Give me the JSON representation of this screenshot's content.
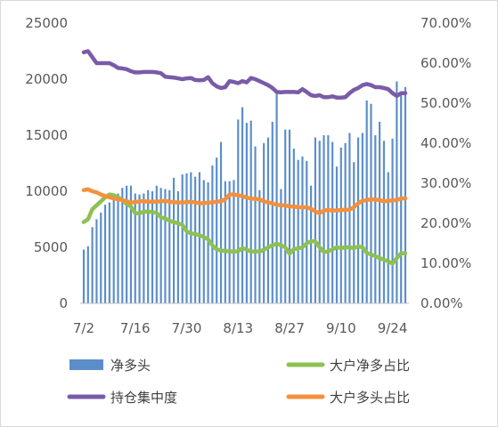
{
  "chart_data": {
    "type": "bar+line",
    "title": "",
    "categories": [
      "7/2",
      "7/3",
      "7/4",
      "7/5",
      "7/6",
      "7/7",
      "7/9",
      "7/10",
      "7/11",
      "7/12",
      "7/13",
      "7/14",
      "7/16",
      "7/17",
      "7/18",
      "7/19",
      "7/20",
      "7/21",
      "7/23",
      "7/24",
      "7/25",
      "7/26",
      "7/27",
      "7/28",
      "7/30",
      "7/31",
      "8/1",
      "8/2",
      "8/3",
      "8/4",
      "8/6",
      "8/7",
      "8/8",
      "8/9",
      "8/10",
      "8/11",
      "8/13",
      "8/14",
      "8/15",
      "8/16",
      "8/17",
      "8/18",
      "8/20",
      "8/21",
      "8/22",
      "8/23",
      "8/24",
      "8/25",
      "8/27",
      "8/28",
      "8/29",
      "8/30",
      "8/31",
      "9/1",
      "9/3",
      "9/4",
      "9/5",
      "9/6",
      "9/7",
      "9/8",
      "9/10",
      "9/11",
      "9/12",
      "9/13",
      "9/14",
      "9/15",
      "9/17",
      "9/18",
      "9/19",
      "9/20",
      "9/21",
      "9/22",
      "9/24",
      "9/25",
      "9/26",
      "9/27"
    ],
    "x_tick_labels": [
      "7/2",
      "7/16",
      "7/30",
      "8/13",
      "8/27",
      "9/10",
      "9/24"
    ],
    "y_left": {
      "min": 0,
      "max": 25000,
      "step": 5000,
      "tick_labels": [
        "0",
        "5000",
        "10000",
        "15000",
        "20000",
        "25000"
      ]
    },
    "y_right": {
      "min": 0,
      "max": 0.7,
      "step": 0.1,
      "tick_labels": [
        "0.00%",
        "10.00%",
        "20.00%",
        "30.00%",
        "40.00%",
        "50.00%",
        "60.00%",
        "70.00%"
      ]
    },
    "legend_position": "bottom",
    "series": [
      {
        "name": "净多头",
        "type": "bar",
        "axis": "left",
        "color": "#5b8ec9",
        "values": [
          4800,
          5100,
          6800,
          7500,
          8100,
          8800,
          9000,
          9600,
          9800,
          10300,
          10500,
          10500,
          9800,
          9700,
          9800,
          10100,
          10000,
          10500,
          10300,
          10200,
          10100,
          11200,
          10000,
          11500,
          11600,
          11700,
          11300,
          11700,
          11000,
          10800,
          12300,
          13000,
          14400,
          10900,
          10900,
          11000,
          16400,
          17500,
          16100,
          16300,
          14000,
          10100,
          14300,
          14800,
          16200,
          19000,
          10200,
          15500,
          15500,
          13800,
          12800,
          13100,
          12700,
          10500,
          14800,
          14500,
          15000,
          15000,
          14400,
          12200,
          13900,
          14300,
          15200,
          12600,
          14800,
          15200,
          18100,
          17800,
          15000,
          16200,
          14500,
          11700,
          14700,
          19800,
          18800,
          19300
        ]
      },
      {
        "name": "大户净多占比",
        "type": "line",
        "axis": "right",
        "color": "#8dc152",
        "values": [
          0.203,
          0.21,
          0.235,
          0.245,
          0.255,
          0.265,
          0.272,
          0.27,
          0.265,
          0.258,
          0.248,
          0.242,
          0.225,
          0.225,
          0.229,
          0.229,
          0.228,
          0.226,
          0.215,
          0.212,
          0.206,
          0.203,
          0.2,
          0.196,
          0.18,
          0.175,
          0.173,
          0.17,
          0.166,
          0.16,
          0.145,
          0.135,
          0.132,
          0.131,
          0.13,
          0.129,
          0.13,
          0.138,
          0.134,
          0.129,
          0.13,
          0.129,
          0.134,
          0.14,
          0.145,
          0.149,
          0.145,
          0.14,
          0.124,
          0.136,
          0.137,
          0.14,
          0.15,
          0.155,
          0.155,
          0.14,
          0.128,
          0.13,
          0.135,
          0.14,
          0.138,
          0.14,
          0.14,
          0.138,
          0.142,
          0.14,
          0.126,
          0.122,
          0.118,
          0.113,
          0.109,
          0.105,
          0.099,
          0.113,
          0.125,
          0.125
        ]
      },
      {
        "name": "持仓集中度",
        "type": "line",
        "axis": "right",
        "color": "#7a5ba8",
        "values": [
          0.627,
          0.63,
          0.615,
          0.6,
          0.6,
          0.6,
          0.6,
          0.595,
          0.588,
          0.587,
          0.585,
          0.58,
          0.577,
          0.577,
          0.578,
          0.578,
          0.578,
          0.577,
          0.575,
          0.566,
          0.565,
          0.564,
          0.562,
          0.56,
          0.562,
          0.563,
          0.558,
          0.557,
          0.558,
          0.565,
          0.55,
          0.542,
          0.538,
          0.54,
          0.555,
          0.553,
          0.55,
          0.555,
          0.552,
          0.563,
          0.56,
          0.555,
          0.55,
          0.545,
          0.538,
          0.528,
          0.527,
          0.528,
          0.528,
          0.528,
          0.527,
          0.535,
          0.528,
          0.52,
          0.518,
          0.52,
          0.515,
          0.515,
          0.517,
          0.514,
          0.514,
          0.515,
          0.525,
          0.533,
          0.538,
          0.545,
          0.548,
          0.545,
          0.54,
          0.54,
          0.538,
          0.535,
          0.525,
          0.518,
          0.525,
          0.525
        ]
      },
      {
        "name": "大户多头占比",
        "type": "line",
        "axis": "right",
        "color": "#f4903c",
        "values": [
          0.283,
          0.285,
          0.28,
          0.277,
          0.272,
          0.268,
          0.265,
          0.262,
          0.26,
          0.258,
          0.255,
          0.252,
          0.253,
          0.255,
          0.255,
          0.254,
          0.254,
          0.254,
          0.255,
          0.256,
          0.254,
          0.253,
          0.252,
          0.252,
          0.253,
          0.254,
          0.252,
          0.25,
          0.25,
          0.252,
          0.252,
          0.254,
          0.255,
          0.26,
          0.272,
          0.272,
          0.27,
          0.268,
          0.264,
          0.262,
          0.261,
          0.26,
          0.255,
          0.252,
          0.25,
          0.246,
          0.245,
          0.245,
          0.242,
          0.242,
          0.24,
          0.24,
          0.24,
          0.236,
          0.23,
          0.225,
          0.232,
          0.233,
          0.232,
          0.232,
          0.233,
          0.234,
          0.234,
          0.24,
          0.25,
          0.256,
          0.258,
          0.26,
          0.259,
          0.258,
          0.255,
          0.256,
          0.257,
          0.258,
          0.262,
          0.262
        ]
      }
    ]
  }
}
